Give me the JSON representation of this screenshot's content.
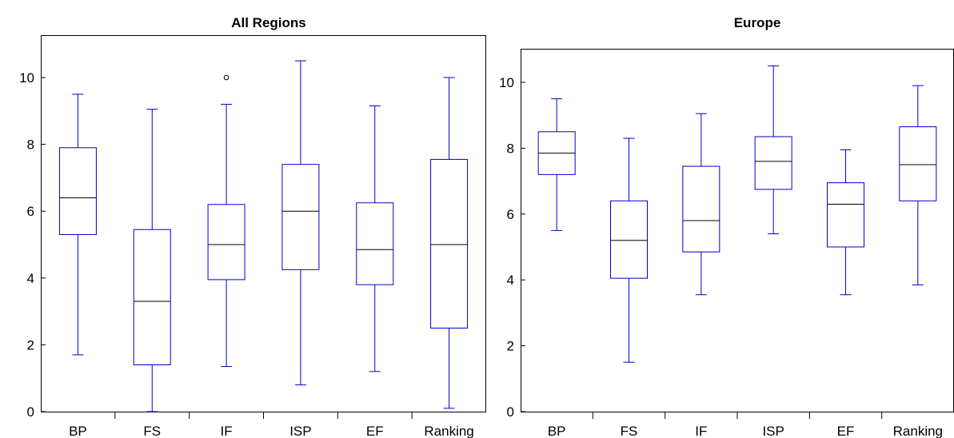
{
  "chart_data": [
    {
      "type": "box",
      "title": "All Regions",
      "xlabel": "",
      "ylabel": "",
      "ylim": [
        0,
        11.1
      ],
      "yticks": [
        0,
        2,
        4,
        6,
        8,
        10
      ],
      "categories": [
        "BP",
        "FS",
        "IF",
        "ISP",
        "EF",
        "Ranking"
      ],
      "boxes": [
        {
          "category": "BP",
          "min": 1.7,
          "q1": 5.3,
          "median": 6.4,
          "q3": 7.9,
          "max": 9.5,
          "outliers": []
        },
        {
          "category": "FS",
          "min": 0.0,
          "q1": 1.4,
          "median": 3.3,
          "q3": 5.45,
          "max": 9.05,
          "outliers": []
        },
        {
          "category": "IF",
          "min": 1.35,
          "q1": 3.95,
          "median": 5.0,
          "q3": 6.2,
          "max": 9.2,
          "outliers": [
            10.0
          ]
        },
        {
          "category": "ISP",
          "min": 0.8,
          "q1": 4.25,
          "median": 6.0,
          "q3": 7.4,
          "max": 10.5,
          "outliers": []
        },
        {
          "category": "EF",
          "min": 1.2,
          "q1": 3.8,
          "median": 4.85,
          "q3": 6.25,
          "max": 9.15,
          "outliers": []
        },
        {
          "category": "Ranking",
          "min": 0.1,
          "q1": 2.5,
          "median": 5.0,
          "q3": 7.55,
          "max": 10.0,
          "outliers": []
        }
      ],
      "colors": {
        "box": "#0000cc",
        "median": "#000000",
        "outlier": "#000000"
      },
      "grid": false,
      "legend": "none"
    },
    {
      "type": "box",
      "title": "Europe",
      "xlabel": "",
      "ylabel": "",
      "ylim": [
        0,
        11.1
      ],
      "yticks": [
        0,
        2,
        4,
        6,
        8,
        10
      ],
      "categories": [
        "BP",
        "FS",
        "IF",
        "ISP",
        "EF",
        "Ranking"
      ],
      "boxes": [
        {
          "category": "BP",
          "min": 5.5,
          "q1": 7.2,
          "median": 7.85,
          "q3": 8.5,
          "max": 9.5,
          "outliers": []
        },
        {
          "category": "FS",
          "min": 1.5,
          "q1": 4.05,
          "median": 5.2,
          "q3": 6.4,
          "max": 8.3,
          "outliers": []
        },
        {
          "category": "IF",
          "min": 3.55,
          "q1": 4.85,
          "median": 5.8,
          "q3": 7.45,
          "max": 9.05,
          "outliers": []
        },
        {
          "category": "ISP",
          "min": 5.4,
          "q1": 6.75,
          "median": 7.6,
          "q3": 8.35,
          "max": 10.5,
          "outliers": []
        },
        {
          "category": "EF",
          "min": 3.55,
          "q1": 5.0,
          "median": 6.3,
          "q3": 6.95,
          "max": 7.95,
          "outliers": []
        },
        {
          "category": "Ranking",
          "min": 3.85,
          "q1": 6.4,
          "median": 7.5,
          "q3": 8.65,
          "max": 9.9,
          "outliers": []
        }
      ],
      "colors": {
        "box": "#0000cc",
        "median": "#000000",
        "outlier": "#000000"
      },
      "grid": false,
      "legend": "none"
    }
  ]
}
